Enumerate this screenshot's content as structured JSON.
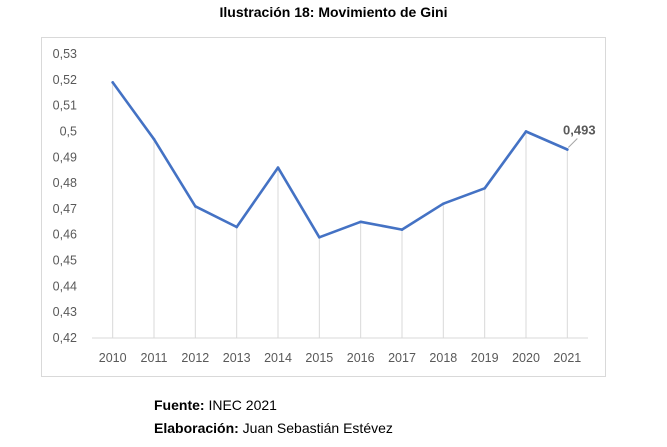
{
  "chart_data": {
    "type": "line",
    "title": "Ilustración 18: Movimiento de Gini",
    "categories": [
      "2010",
      "2011",
      "2012",
      "2013",
      "2014",
      "2015",
      "2016",
      "2017",
      "2018",
      "2019",
      "2020",
      "2021"
    ],
    "series": [
      {
        "values": [
          0.519,
          0.497,
          0.471,
          0.463,
          0.486,
          0.459,
          0.465,
          0.462,
          0.472,
          0.478,
          0.5,
          0.493
        ]
      }
    ],
    "ylim": [
      0.42,
      0.53
    ],
    "yticks": [
      "0,42",
      "0,43",
      "0,44",
      "0,45",
      "0,46",
      "0,47",
      "0,48",
      "0,49",
      "0,5",
      "0,51",
      "0,52",
      "0,53"
    ],
    "data_labels": [
      {
        "category": "2021",
        "text": "0,493"
      }
    ],
    "drop_lines": true,
    "grid": false,
    "colors": {
      "line": "#4472c4",
      "drop_line": "#d9d9d9",
      "label": "#595959",
      "axis_text": "#595959"
    }
  },
  "footer": {
    "source_label": "Fuente:",
    "source_value": " INEC 2021",
    "author_label": "Elaboración:",
    "author_value": " Juan Sebastián Estévez"
  }
}
